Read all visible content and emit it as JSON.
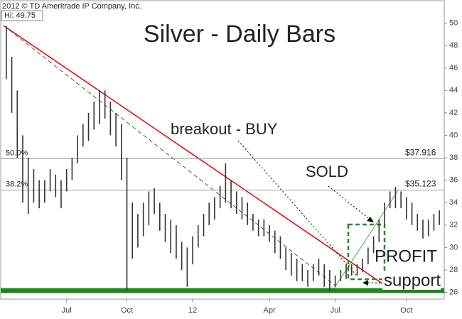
{
  "chart_data": {
    "type": "hlbar",
    "title": "Silver - Daily Bars",
    "copyright": "2012 © TD Ameritrade IP Company, Inc.",
    "high_label": "Hi: 49.75",
    "annotations": [
      "breakout - BUY",
      "SOLD",
      "PROFIT",
      "support"
    ],
    "categories": [
      null,
      null,
      null,
      null,
      null,
      null,
      null,
      null,
      null,
      null,
      null,
      "Jul",
      null,
      null,
      null,
      null,
      null,
      null,
      null,
      null,
      null,
      null,
      "Oct",
      null,
      null,
      null,
      null,
      null,
      null,
      null,
      null,
      null,
      null,
      null,
      "12",
      null,
      null,
      null,
      null,
      null,
      null,
      null,
      null,
      null,
      null,
      null,
      null,
      null,
      "Apr",
      null,
      null,
      null,
      null,
      null,
      null,
      null,
      null,
      null,
      null,
      null,
      "Jul",
      null,
      null,
      null,
      null,
      null,
      null,
      null,
      null,
      null,
      null,
      null,
      null,
      "Oct",
      null,
      null,
      null,
      null,
      null,
      null
    ],
    "high": [
      49.75,
      47,
      44,
      40,
      38,
      37,
      36,
      36,
      37,
      36.5,
      36,
      37,
      38,
      40,
      41,
      42,
      43,
      44,
      44,
      43,
      42,
      41,
      38,
      34,
      33,
      34,
      35,
      35.3,
      34,
      33,
      32.5,
      32,
      30.5,
      30,
      31,
      32,
      33,
      34,
      34.5,
      35.5,
      37.5,
      36,
      35,
      34.5,
      34,
      33,
      32.5,
      32.5,
      32,
      31.5,
      31,
      30,
      29.5,
      29,
      28.5,
      28,
      28.5,
      29,
      28.5,
      28,
      27.5,
      28,
      28.5,
      28.5,
      28.5,
      29,
      30,
      31,
      32.5,
      34,
      35,
      35.4,
      35,
      34.5,
      34,
      33,
      32.5,
      32.5,
      33,
      33.3
    ],
    "low": [
      45,
      42,
      38,
      34,
      33,
      34,
      33.5,
      34,
      35,
      34.5,
      33.5,
      35,
      36,
      37.5,
      39,
      39.5,
      40.5,
      41,
      41.5,
      40,
      39,
      36,
      26.2,
      29,
      30,
      31,
      32,
      33,
      31.5,
      30.5,
      29.5,
      29,
      28,
      26.5,
      28.5,
      30,
      31,
      32,
      32.5,
      33.5,
      34,
      33.5,
      33,
      32.5,
      32,
      31.5,
      31,
      31,
      30.5,
      29.5,
      29,
      28,
      27.5,
      27,
      27,
      26.5,
      27,
      27.5,
      26.5,
      26.1,
      26.5,
      27,
      27.2,
      27.5,
      27.5,
      27.8,
      28.5,
      29.5,
      30.5,
      32,
      33.5,
      33.5,
      33.5,
      32.5,
      32,
      31.5,
      30.8,
      31,
      31.5,
      32
    ],
    "color": "#333333",
    "fib_levels": [
      {
        "value": 37.916,
        "label": "$37.916",
        "ratio": "50.0%"
      },
      {
        "value": 35.123,
        "label": "$35.123",
        "ratio": "38.2%"
      }
    ],
    "ylim": [
      25.4,
      52
    ],
    "yticks": [
      26,
      28,
      30,
      32,
      34,
      36,
      38,
      40,
      42,
      44,
      46,
      48,
      50
    ]
  }
}
